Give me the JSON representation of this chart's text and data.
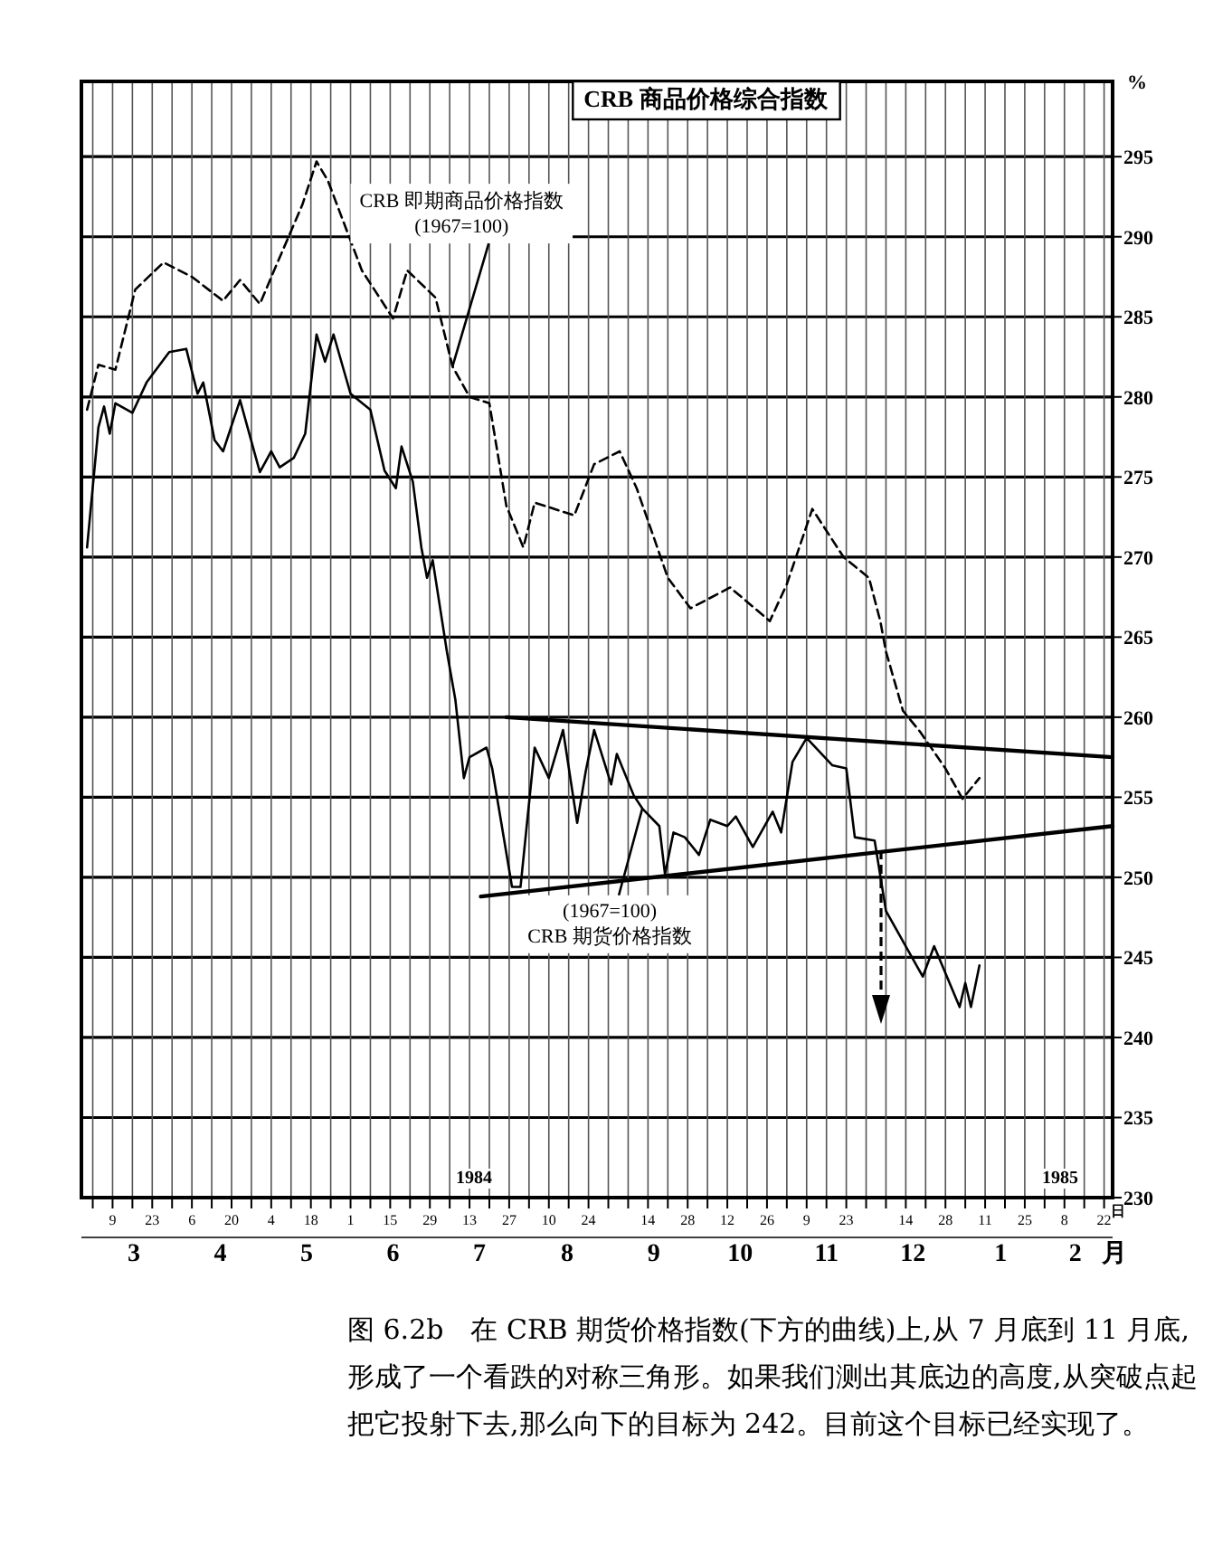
{
  "chart_data": {
    "type": "line",
    "title": "CRB 商品价格综合指数",
    "ylabel": "%",
    "xlim": [
      "1984-02-27",
      "1985-02-25"
    ],
    "ylim": [
      230,
      299.7
    ],
    "yticks": [
      230,
      235,
      240,
      245,
      250,
      255,
      260,
      265,
      270,
      275,
      280,
      285,
      290,
      295
    ],
    "xticks": [
      {
        "value": "1984-03-02",
        "label": null
      },
      {
        "value": "1984-03-09",
        "label": "9"
      },
      {
        "value": "1984-03-16",
        "label": null
      },
      {
        "value": "1984-03-23",
        "label": "23"
      },
      {
        "value": "1984-03-30",
        "label": null
      },
      {
        "value": "1984-04-06",
        "label": "6"
      },
      {
        "value": "1984-04-13",
        "label": null
      },
      {
        "value": "1984-04-20",
        "label": "20"
      },
      {
        "value": "1984-04-27",
        "label": null
      },
      {
        "value": "1984-05-04",
        "label": "4"
      },
      {
        "value": "1984-05-11",
        "label": null
      },
      {
        "value": "1984-05-18",
        "label": "18"
      },
      {
        "value": "1984-05-25",
        "label": null
      },
      {
        "value": "1984-06-01",
        "label": "1"
      },
      {
        "value": "1984-06-08",
        "label": null
      },
      {
        "value": "1984-06-15",
        "label": "15"
      },
      {
        "value": "1984-06-22",
        "label": null
      },
      {
        "value": "1984-06-29",
        "label": "29"
      },
      {
        "value": "1984-07-06",
        "label": null
      },
      {
        "value": "1984-07-13",
        "label": "13"
      },
      {
        "value": "1984-07-20",
        "label": null
      },
      {
        "value": "1984-07-27",
        "label": "27"
      },
      {
        "value": "1984-08-03",
        "label": null
      },
      {
        "value": "1984-08-10",
        "label": "10"
      },
      {
        "value": "1984-08-17",
        "label": null
      },
      {
        "value": "1984-08-24",
        "label": "24"
      },
      {
        "value": "1984-08-31",
        "label": null
      },
      {
        "value": "1984-09-07",
        "label": null
      },
      {
        "value": "1984-09-14",
        "label": "14"
      },
      {
        "value": "1984-09-21",
        "label": null
      },
      {
        "value": "1984-09-28",
        "label": "28"
      },
      {
        "value": "1984-10-05",
        "label": null
      },
      {
        "value": "1984-10-12",
        "label": "12"
      },
      {
        "value": "1984-10-19",
        "label": null
      },
      {
        "value": "1984-10-26",
        "label": "26"
      },
      {
        "value": "1984-11-02",
        "label": null
      },
      {
        "value": "1984-11-09",
        "label": "9"
      },
      {
        "value": "1984-11-16",
        "label": null
      },
      {
        "value": "1984-11-23",
        "label": "23"
      },
      {
        "value": "1984-11-30",
        "label": null
      },
      {
        "value": "1984-12-07",
        "label": null
      },
      {
        "value": "1984-12-14",
        "label": "14"
      },
      {
        "value": "1984-12-21",
        "label": null
      },
      {
        "value": "1984-12-28",
        "label": "28"
      },
      {
        "value": "1985-01-04",
        "label": null
      },
      {
        "value": "1985-01-11",
        "label": "11"
      },
      {
        "value": "1985-01-18",
        "label": null
      },
      {
        "value": "1985-01-25",
        "label": "25"
      },
      {
        "value": "1985-02-01",
        "label": null
      },
      {
        "value": "1985-02-08",
        "label": "8"
      },
      {
        "value": "1985-02-15",
        "label": null
      },
      {
        "value": "1985-02-22",
        "label": "22"
      }
    ],
    "grid": true,
    "series": [
      {
        "color": "#000000",
        "line_style": "dashed",
        "x": [
          "1984-02-29",
          "1984-03-04",
          "1984-03-10",
          "1984-03-17",
          "1984-03-27",
          "1984-04-06",
          "1984-04-17",
          "1984-04-23",
          "1984-04-30",
          "1984-05-06",
          "1984-05-15",
          "1984-05-20",
          "1984-05-24",
          "1984-06-05",
          "1984-06-16",
          "1984-06-21",
          "1984-07-01",
          "1984-07-07",
          "1984-07-13",
          "1984-07-20",
          "1984-07-26",
          "1984-08-01",
          "1984-08-05",
          "1984-08-19",
          "1984-08-26",
          "1984-09-04",
          "1984-09-10",
          "1984-09-21",
          "1984-09-29",
          "1984-10-13",
          "1984-10-27",
          "1984-11-02",
          "1984-11-11",
          "1984-11-22",
          "1984-12-01",
          "1984-12-05",
          "1984-12-07",
          "1984-12-13",
          "1984-12-19",
          "1984-12-28",
          "1985-01-03",
          "1985-01-09"
        ],
        "values": [
          279.2,
          282.0,
          281.7,
          286.7,
          288.4,
          287.5,
          286.0,
          287.3,
          285.8,
          288.3,
          292.0,
          294.7,
          293.5,
          287.9,
          284.9,
          287.9,
          286.2,
          281.9,
          280.0,
          279.6,
          273.2,
          270.6,
          273.4,
          272.6,
          275.8,
          276.6,
          274.3,
          268.7,
          266.8,
          268.1,
          266.0,
          268.3,
          273.0,
          270.0,
          268.7,
          266.0,
          264.1,
          260.4,
          259.1,
          256.8,
          254.9,
          256.2
        ]
      },
      {
        "color": "#000000",
        "line_style": "solid",
        "x": [
          "1984-02-29",
          "1984-03-04",
          "1984-03-06",
          "1984-03-08",
          "1984-03-10",
          "1984-03-16",
          "1984-03-21",
          "1984-03-29",
          "1984-04-04",
          "1984-04-08",
          "1984-04-10",
          "1984-04-14",
          "1984-04-17",
          "1984-04-23",
          "1984-04-30",
          "1984-05-04",
          "1984-05-07",
          "1984-05-12",
          "1984-05-16",
          "1984-05-20",
          "1984-05-23",
          "1984-05-26",
          "1984-06-01",
          "1984-06-08",
          "1984-06-13",
          "1984-06-17",
          "1984-06-19",
          "1984-06-23",
          "1984-06-26",
          "1984-06-28",
          "1984-06-30",
          "1984-07-05",
          "1984-07-08",
          "1984-07-11",
          "1984-07-13",
          "1984-07-19",
          "1984-07-21",
          "1984-07-28",
          "1984-07-31",
          "1984-08-05",
          "1984-08-10",
          "1984-08-15",
          "1984-08-20",
          "1984-08-23",
          "1984-08-26",
          "1984-09-01",
          "1984-09-03",
          "1984-09-09",
          "1984-09-12",
          "1984-09-18",
          "1984-09-20",
          "1984-09-23",
          "1984-09-27",
          "1984-10-02",
          "1984-10-06",
          "1984-10-12",
          "1984-10-15",
          "1984-10-21",
          "1984-10-28",
          "1984-10-31",
          "1984-11-04",
          "1984-11-09",
          "1984-11-18",
          "1984-11-23",
          "1984-11-26",
          "1984-12-03",
          "1984-12-07",
          "1984-12-20",
          "1984-12-24",
          "1985-01-02",
          "1985-01-04",
          "1985-01-06",
          "1985-01-09"
        ],
        "values": [
          270.6,
          278.1,
          279.4,
          277.7,
          279.6,
          279.0,
          280.9,
          282.8,
          283.0,
          280.2,
          280.9,
          277.3,
          276.6,
          279.8,
          275.3,
          276.6,
          275.6,
          276.2,
          277.7,
          283.9,
          282.2,
          283.9,
          280.2,
          279.2,
          275.4,
          274.3,
          276.9,
          274.7,
          270.6,
          268.7,
          269.8,
          264.1,
          261.1,
          256.2,
          257.5,
          258.1,
          256.8,
          249.4,
          249.4,
          258.1,
          256.2,
          259.2,
          253.4,
          256.6,
          259.2,
          255.8,
          257.7,
          255.1,
          254.3,
          253.2,
          250.2,
          252.8,
          252.5,
          251.4,
          253.6,
          253.2,
          253.8,
          251.9,
          254.1,
          252.8,
          257.2,
          258.7,
          257.0,
          256.8,
          252.5,
          252.3,
          247.9,
          243.8,
          245.7,
          241.9,
          243.4,
          241.9,
          244.5
        ]
      },
      {
        "color": "#000000",
        "line_style": "solid",
        "x": [
          "1984-07-26",
          "1985-02-25"
        ],
        "values": [
          260.0,
          257.5
        ]
      },
      {
        "color": "#000000",
        "line_style": "solid",
        "x": [
          "1984-07-17",
          "1985-02-25"
        ],
        "values": [
          248.8,
          253.2
        ]
      }
    ],
    "annotations": [
      {
        "text": "CRB 即期商品价格指数\n(1967=100)",
        "x": "1984-07-07",
        "y": 281.9
      },
      {
        "text": "(1967=100)\nCRB 期货价格指数",
        "x": "1984-09-12",
        "y": 254.3
      },
      "1984",
      "1985",
      "3",
      "4",
      "5",
      "6",
      "7",
      "8",
      "9",
      "10",
      "11",
      "12",
      "1",
      "2",
      "日",
      "月",
      "图 6.2b　在 CRB 期货价格指数(下方的曲线)上,从 7 月底到 11 月底,形成了一个看跌的对称三角形。如果我们测出其底边的高度,从突破点起把它投射下去,那么向下的目标为 242。目前这个目标已经实现了。"
    ]
  }
}
